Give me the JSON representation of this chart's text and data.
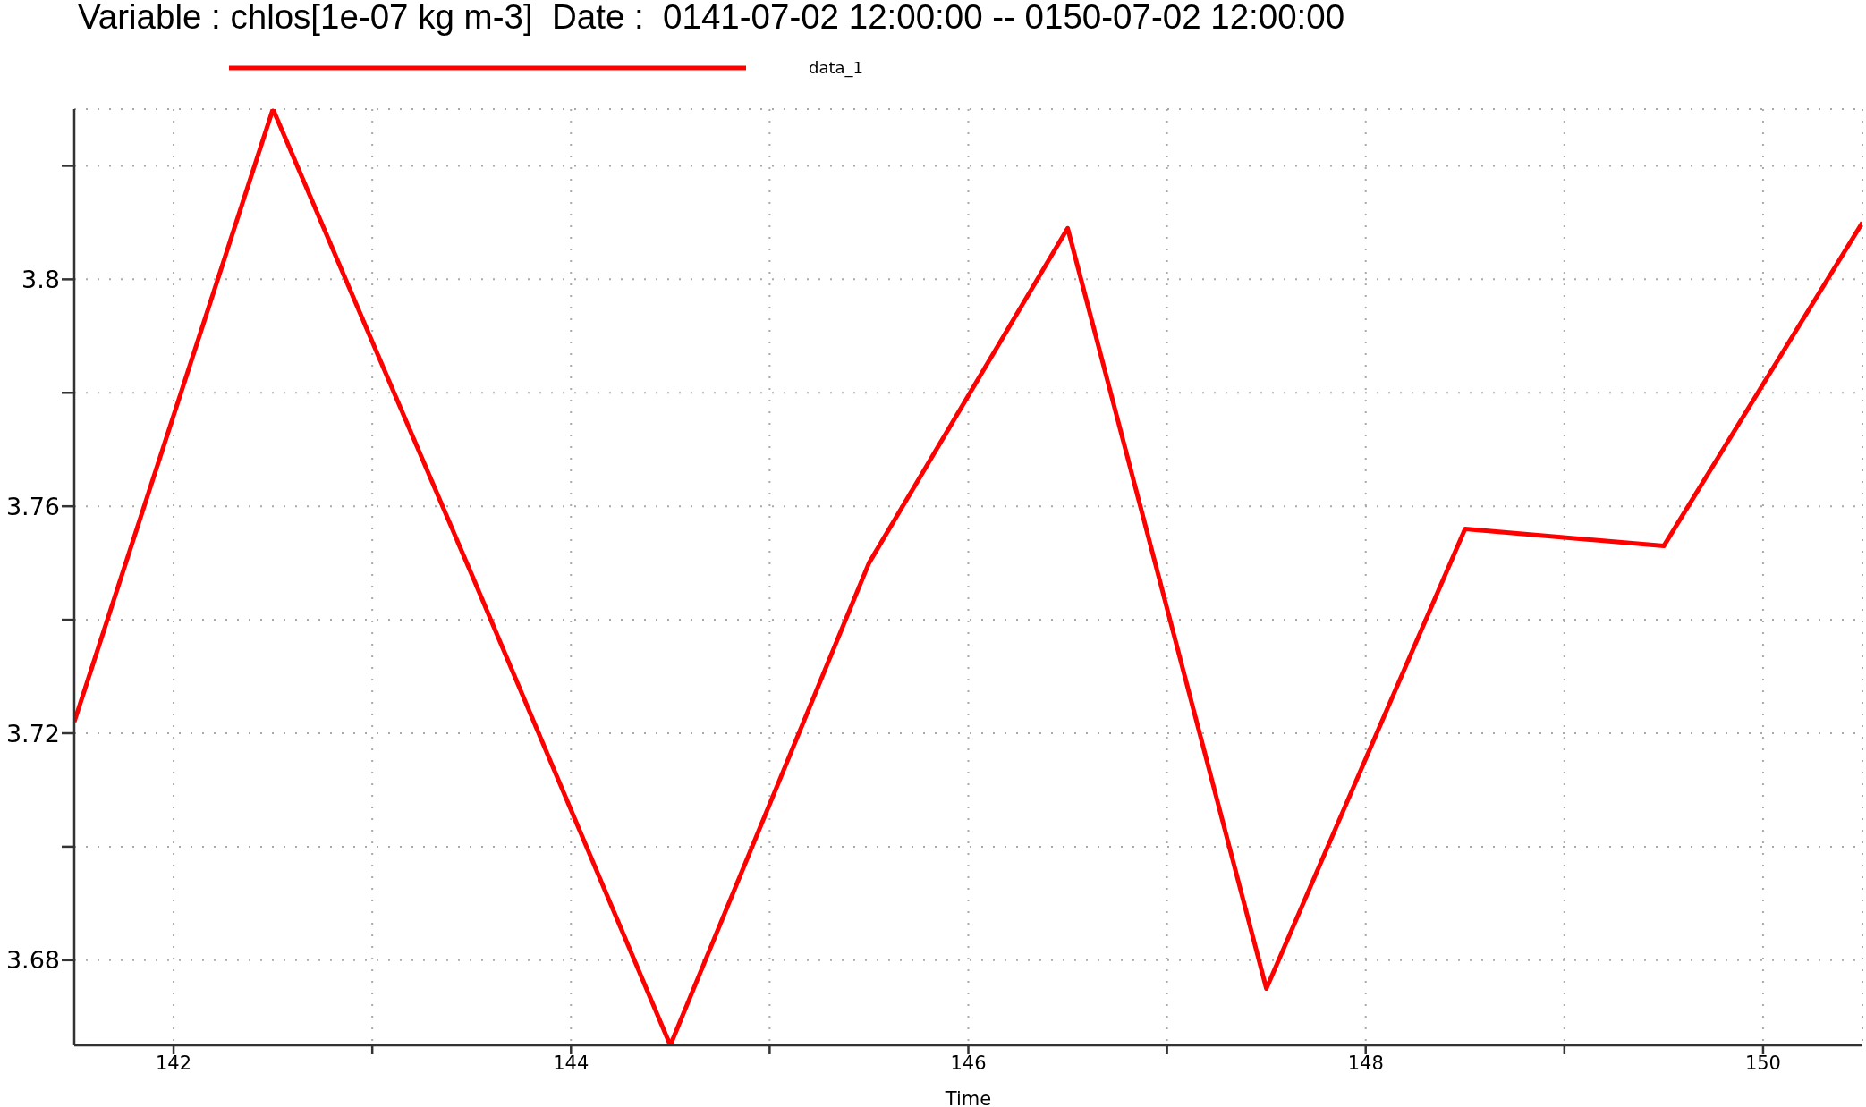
{
  "chart_data": {
    "type": "line",
    "title": "Variable : chlos[1e-07 kg m-3]  Date :  0141-07-02 12:00:00 -- 0150-07-02 12:00:00",
    "xlabel": "Time",
    "x": [
      141.5,
      142.5,
      143.5,
      144.5,
      145.5,
      146.5,
      147.5,
      148.5,
      149.5,
      150.5
    ],
    "series": [
      {
        "name": "data_1",
        "color": "#ff0000",
        "values": [
          3.722,
          3.83,
          3.748,
          3.665,
          3.75,
          3.809,
          3.675,
          3.756,
          3.753,
          3.81
        ]
      }
    ],
    "xlim": [
      141.5,
      150.5
    ],
    "xticks": [
      142,
      {
        "value": 143,
        "label": null
      },
      144,
      {
        "value": 145,
        "label": null
      },
      146,
      {
        "value": 147,
        "label": null
      },
      148,
      {
        "value": 149,
        "label": null
      },
      150
    ],
    "ylim": [
      3.665,
      3.83
    ],
    "yticks": [
      3.68,
      {
        "value": 3.7,
        "label": null
      },
      3.72,
      {
        "value": 3.74,
        "label": null
      },
      3.76,
      {
        "value": 3.78,
        "label": null
      },
      3.8,
      {
        "value": 3.82,
        "label": null
      }
    ],
    "grid": true,
    "legend": "top",
    "marker": "none",
    "line_style": "solid"
  }
}
